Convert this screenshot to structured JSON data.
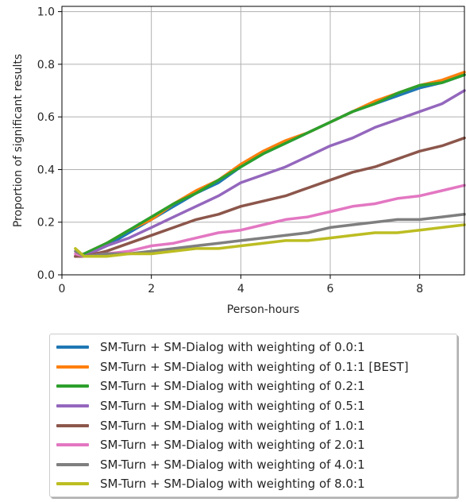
{
  "chart_data": {
    "type": "line",
    "title": "",
    "xlabel": "Person-hours",
    "ylabel": "Proportion of significant results",
    "xlim": [
      0,
      9
    ],
    "ylim": [
      0,
      1.02
    ],
    "grid": true,
    "legend_position": "bottom, outside plot",
    "x_ticks": [
      "0",
      "2",
      "4",
      "6",
      "8"
    ],
    "x_tick_values": [
      0,
      2,
      4,
      6,
      8
    ],
    "y_ticks": [
      "0.0",
      "0.2",
      "0.4",
      "0.6",
      "0.8",
      "1.0"
    ],
    "y_tick_values": [
      0,
      0.2,
      0.4,
      0.6,
      0.8,
      1.0
    ],
    "x": [
      0.3,
      0.5,
      1.0,
      1.5,
      2.0,
      2.5,
      3.0,
      3.5,
      4.0,
      4.5,
      5.0,
      5.5,
      6.0,
      6.5,
      7.0,
      7.5,
      8.0,
      8.5,
      9.0
    ],
    "series": [
      {
        "name": "SM-Turn + SM-Dialog with weighting of 0.0:1",
        "color": "#1f77b4",
        "values": [
          0.07,
          0.08,
          0.11,
          0.16,
          0.21,
          0.26,
          0.31,
          0.35,
          0.41,
          0.46,
          0.5,
          0.54,
          0.58,
          0.62,
          0.65,
          0.68,
          0.71,
          0.73,
          0.76
        ]
      },
      {
        "name": "SM-Turn + SM-Dialog with weighting of 0.1:1 [BEST]",
        "color": "#ff7f0e",
        "values": [
          0.07,
          0.08,
          0.12,
          0.17,
          0.21,
          0.27,
          0.32,
          0.36,
          0.42,
          0.47,
          0.51,
          0.54,
          0.58,
          0.62,
          0.66,
          0.69,
          0.72,
          0.74,
          0.77
        ]
      },
      {
        "name": "SM-Turn + SM-Dialog with weighting of 0.2:1",
        "color": "#2ca02c",
        "values": [
          0.07,
          0.08,
          0.12,
          0.17,
          0.22,
          0.27,
          0.31,
          0.36,
          0.41,
          0.46,
          0.5,
          0.54,
          0.58,
          0.62,
          0.65,
          0.69,
          0.72,
          0.73,
          0.76
        ]
      },
      {
        "name": "SM-Turn + SM-Dialog with weighting of 0.5:1",
        "color": "#9467bd",
        "values": [
          0.07,
          0.07,
          0.11,
          0.14,
          0.18,
          0.22,
          0.26,
          0.3,
          0.35,
          0.38,
          0.41,
          0.45,
          0.49,
          0.52,
          0.56,
          0.59,
          0.62,
          0.65,
          0.7
        ]
      },
      {
        "name": "SM-Turn + SM-Dialog with weighting of 1.0:1",
        "color": "#8c564b",
        "values": [
          0.07,
          0.07,
          0.09,
          0.12,
          0.15,
          0.18,
          0.21,
          0.23,
          0.26,
          0.28,
          0.3,
          0.33,
          0.36,
          0.39,
          0.41,
          0.44,
          0.47,
          0.49,
          0.52
        ]
      },
      {
        "name": "SM-Turn + SM-Dialog with weighting of 2.0:1",
        "color": "#e377c2",
        "values": [
          0.08,
          0.07,
          0.08,
          0.09,
          0.11,
          0.12,
          0.14,
          0.16,
          0.17,
          0.19,
          0.21,
          0.22,
          0.24,
          0.26,
          0.27,
          0.29,
          0.3,
          0.32,
          0.34
        ]
      },
      {
        "name": "SM-Turn + SM-Dialog with weighting of 4.0:1",
        "color": "#7f7f7f",
        "values": [
          0.09,
          0.07,
          0.08,
          0.08,
          0.09,
          0.1,
          0.11,
          0.12,
          0.13,
          0.14,
          0.15,
          0.16,
          0.18,
          0.19,
          0.2,
          0.21,
          0.21,
          0.22,
          0.23
        ]
      },
      {
        "name": "SM-Turn + SM-Dialog with weighting of 8.0:1",
        "color": "#bcbd22",
        "values": [
          0.1,
          0.07,
          0.07,
          0.08,
          0.08,
          0.09,
          0.1,
          0.1,
          0.11,
          0.12,
          0.13,
          0.13,
          0.14,
          0.15,
          0.16,
          0.16,
          0.17,
          0.18,
          0.19
        ]
      }
    ]
  }
}
